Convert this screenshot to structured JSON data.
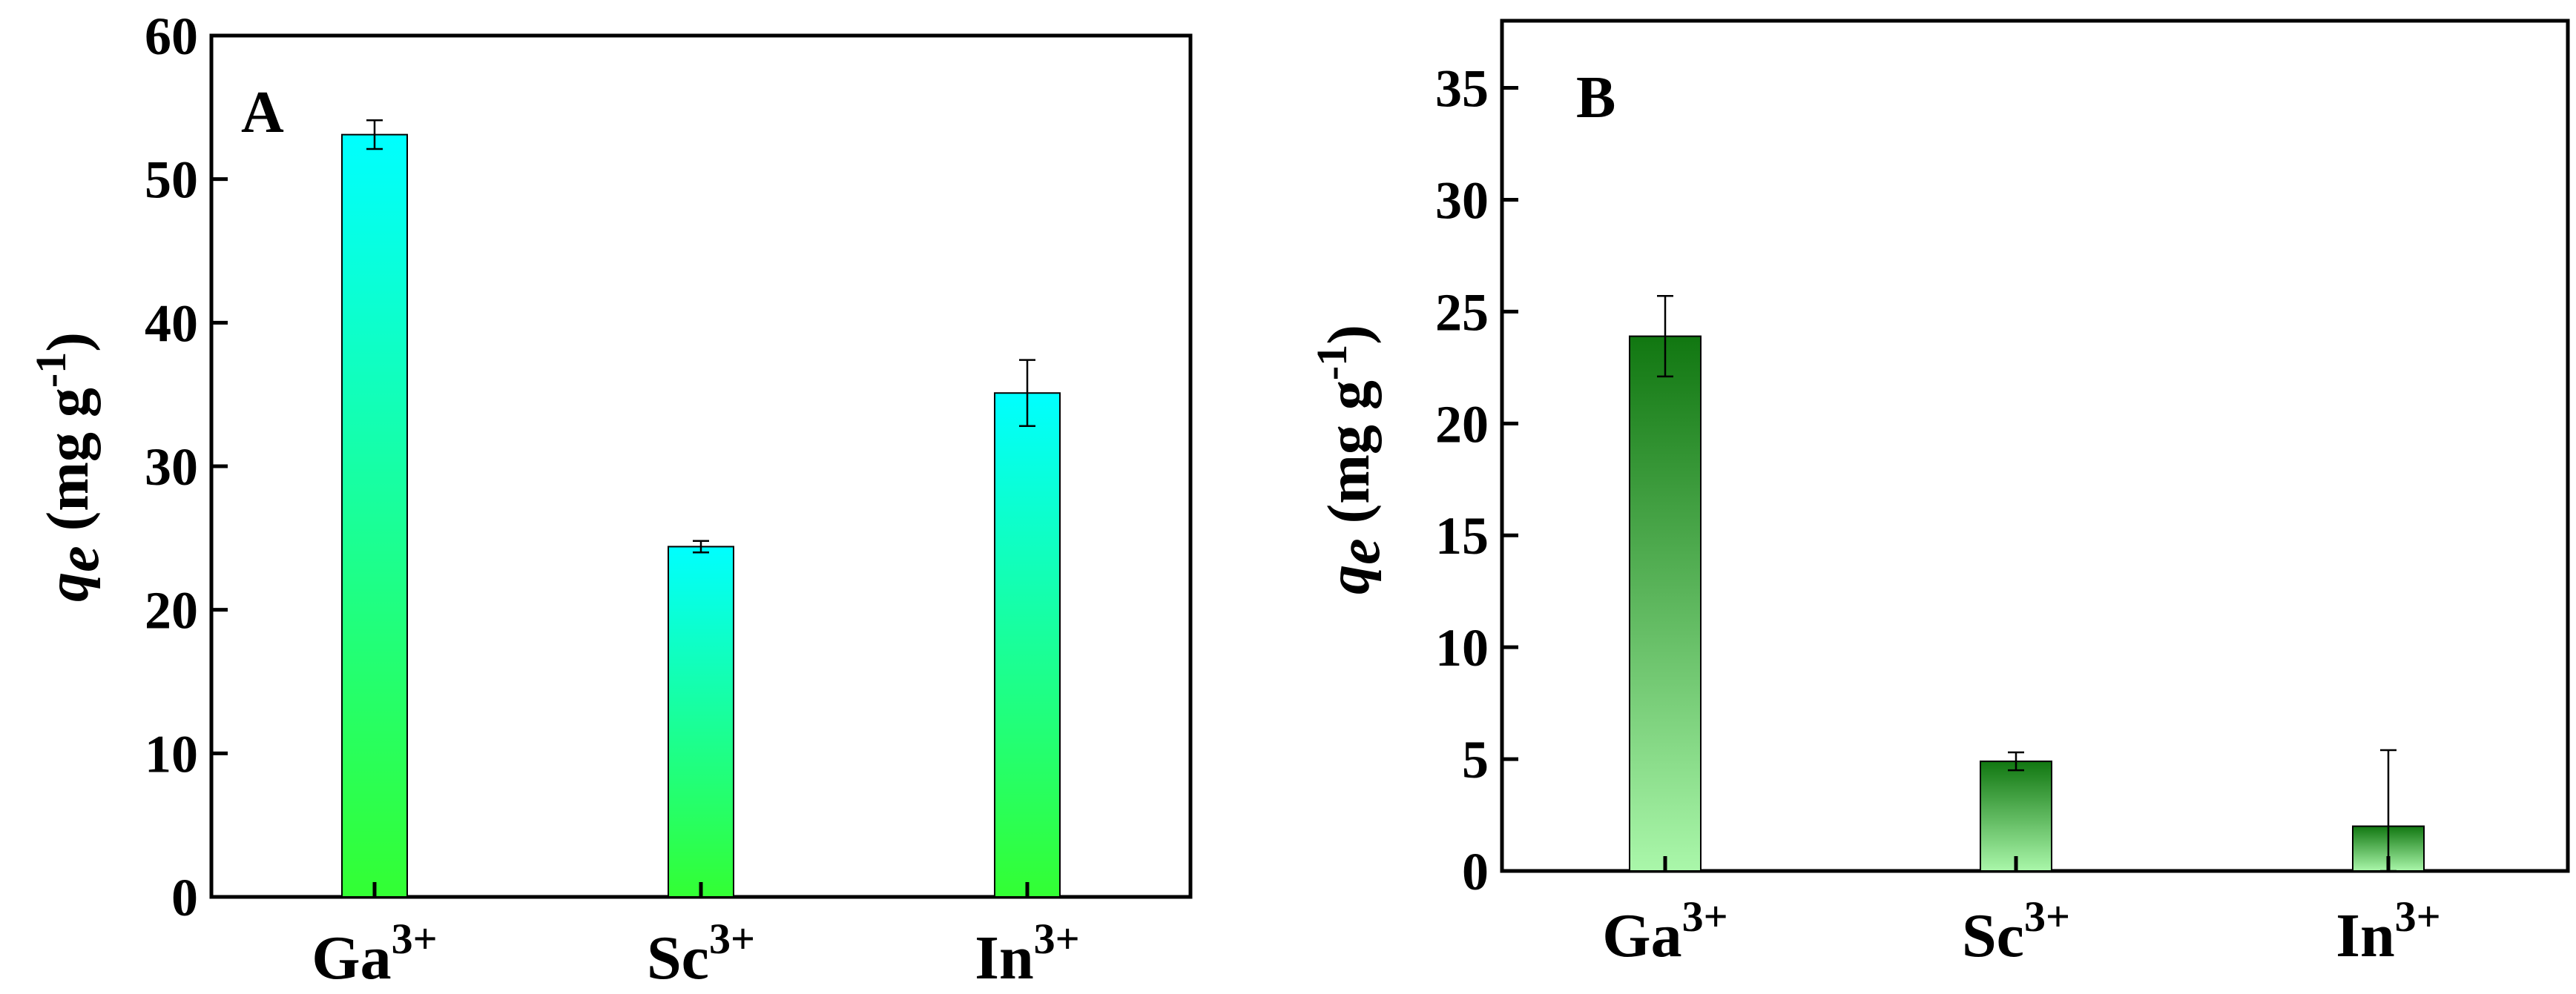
{
  "chart_data": [
    {
      "type": "bar",
      "panel_label": "A",
      "categories": [
        {
          "base": "Ga",
          "sup": "3+"
        },
        {
          "base": "Sc",
          "sup": "3+"
        },
        {
          "base": "In",
          "sup": "3+"
        }
      ],
      "values": [
        53.1,
        24.4,
        35.1
      ],
      "errors": [
        1.0,
        0.4,
        2.3
      ],
      "ylim": [
        0,
        60
      ],
      "yticks": [
        "0",
        "10",
        "20",
        "30",
        "40",
        "50",
        "60"
      ],
      "ylabel": {
        "symbol": "q",
        "subscript": "e",
        "text": " (mg g",
        "sup": "-1",
        "close": ")"
      },
      "fill_top": "#00ffff",
      "fill_bottom": "#33ff33"
    },
    {
      "type": "bar",
      "panel_label": "B",
      "categories": [
        {
          "base": "Ga",
          "sup": "3+"
        },
        {
          "base": "Sc",
          "sup": "3+"
        },
        {
          "base": "In",
          "sup": "3+"
        }
      ],
      "values": [
        23.9,
        4.9,
        2.0
      ],
      "errors": [
        1.8,
        0.4,
        3.4
      ],
      "ylim": [
        0,
        38
      ],
      "yticks": [
        "0",
        "5",
        "10",
        "15",
        "20",
        "25",
        "30",
        "35"
      ],
      "ylabel": {
        "symbol": "q",
        "subscript": "e",
        "text": " (mg g",
        "sup": "-1",
        "close": ")"
      },
      "fill_top": "#117711",
      "fill_bottom": "#aaf7aa"
    }
  ]
}
